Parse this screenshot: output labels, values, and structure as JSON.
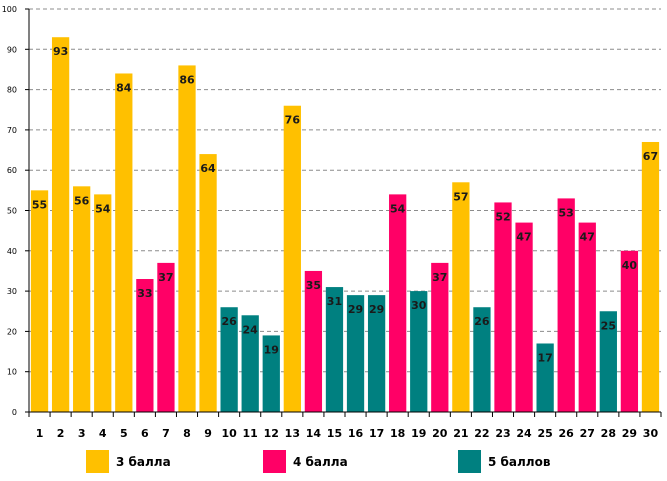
{
  "chart_data": {
    "type": "bar",
    "title": "",
    "xlabel": "",
    "ylabel": "",
    "ylim": [
      0,
      100
    ],
    "ytick_step": 10,
    "grid": true,
    "legend_position": "bottom",
    "categories": [
      "1",
      "2",
      "3",
      "4",
      "5",
      "6",
      "7",
      "8",
      "9",
      "10",
      "11",
      "12",
      "13",
      "14",
      "15",
      "16",
      "17",
      "18",
      "19",
      "20",
      "21",
      "22",
      "23",
      "24",
      "25",
      "26",
      "27",
      "28",
      "29",
      "30"
    ],
    "values": [
      55,
      93,
      56,
      54,
      84,
      33,
      37,
      86,
      64,
      26,
      24,
      19,
      76,
      35,
      31,
      29,
      29,
      54,
      30,
      37,
      57,
      26,
      52,
      47,
      17,
      53,
      47,
      25,
      40,
      67
    ],
    "groups": [
      "g3",
      "g3",
      "g3",
      "g3",
      "g3",
      "g4",
      "g4",
      "g3",
      "g3",
      "g5",
      "g5",
      "g5",
      "g3",
      "g4",
      "g5",
      "g5",
      "g5",
      "g4",
      "g5",
      "g4",
      "g3",
      "g5",
      "g4",
      "g4",
      "g5",
      "g4",
      "g4",
      "g5",
      "g4",
      "g3"
    ],
    "legend": [
      {
        "key": "g3",
        "label": "3 балла",
        "color": "#FFC000"
      },
      {
        "key": "g4",
        "label": "4 балла",
        "color": "#FF0066"
      },
      {
        "key": "g5",
        "label": "5 баллов",
        "color": "#008080"
      }
    ]
  }
}
